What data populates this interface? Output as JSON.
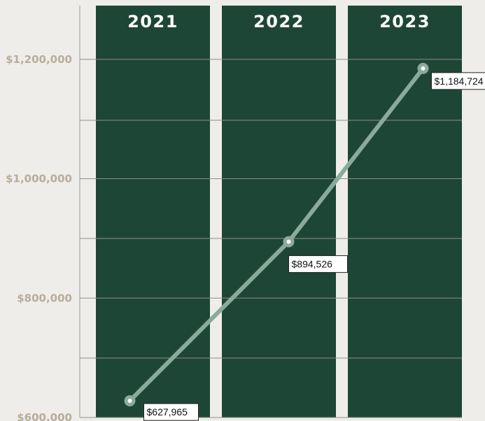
{
  "chart_data": {
    "type": "line",
    "categories": [
      "2021",
      "2022",
      "2023"
    ],
    "series": [
      {
        "values": [
          627965,
          894526,
          1184724
        ]
      }
    ],
    "data_labels": [
      "$627,965",
      "$894,526",
      "$1,184,724"
    ],
    "y_ticks": [
      600000,
      800000,
      1000000,
      1200000
    ],
    "y_tick_labels": [
      "$600,000",
      "$800,000",
      "$1,000,000",
      "$1,200,000"
    ],
    "ylim": [
      600000,
      1290000
    ],
    "grid": true,
    "colors": {
      "background": "#efedea",
      "column": "#1e4637",
      "line": "#8aab9c",
      "gridline": "#8d8d89",
      "axis_text": "#b7ad9c",
      "column_text": "#ffffff"
    }
  }
}
